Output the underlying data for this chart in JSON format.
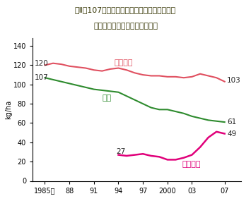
{
  "title_line1": "図Ⅱ－107　農地への化学肂料（窒素成分）、",
  "title_line2": "農薬、生物農薬の投入量の推移",
  "ylabel": "kg/ha",
  "bg_color": "#b8d080",
  "plot_bg": "#ffffff",
  "title_text_color": "#333300",
  "chemical_label": "化学肂料",
  "pesticide_label": "農薬",
  "bio_label": "生物農薬",
  "years": [
    1985,
    1986,
    1987,
    1988,
    1989,
    1990,
    1991,
    1992,
    1993,
    1994,
    1995,
    1996,
    1997,
    1998,
    1999,
    2000,
    2001,
    2002,
    2003,
    2004,
    2005,
    2006,
    2007
  ],
  "chemical": [
    120,
    122,
    121,
    119,
    118,
    117,
    115,
    114,
    116,
    117,
    115,
    112,
    110,
    109,
    109,
    108,
    108,
    107,
    108,
    111,
    109,
    107,
    103
  ],
  "pesticide": [
    107,
    105,
    103,
    101,
    99,
    97,
    95,
    94,
    93,
    92,
    88,
    84,
    80,
    76,
    74,
    74,
    72,
    70,
    67,
    65,
    63,
    62,
    61
  ],
  "bio": [
    null,
    null,
    null,
    null,
    null,
    null,
    null,
    null,
    null,
    27,
    26,
    27,
    28,
    26,
    25,
    22,
    22,
    24,
    27,
    35,
    45,
    51,
    49
  ],
  "chemical_color": "#e05060",
  "pesticide_color": "#2e8b2e",
  "bio_color": "#e0007a",
  "xticks": [
    1985,
    1988,
    1991,
    1994,
    1997,
    2000,
    2003,
    2007
  ],
  "xticklabels": [
    "1985年",
    "88",
    "91",
    "94",
    "97",
    "2000",
    "03",
    "07"
  ],
  "yticks": [
    0,
    20,
    40,
    60,
    80,
    100,
    120,
    140
  ],
  "ylim": [
    0,
    148
  ],
  "xlim": [
    1983.5,
    2009
  ]
}
